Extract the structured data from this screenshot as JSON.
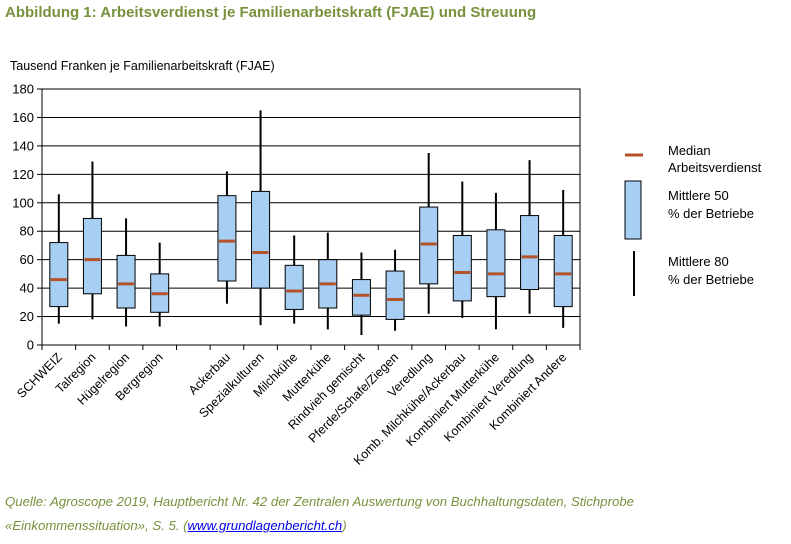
{
  "title": "Abbildung 1: Arbeitsverdienst je Familienarbeitskraft (FJAE) und Streuung",
  "source": {
    "line1": "Quelle: Agroscope 2019, Hauptbericht Nr. 42 der Zentralen Auswertung von Buchhaltungsdaten, Stichprobe",
    "line2_prefix": "«Einkommenssituation», S. 5. (",
    "link": "www.grundlagenbericht.ch",
    "line2_suffix": ")"
  },
  "colors": {
    "box_fill": "#a6cff3",
    "median": "#b4532a",
    "whisker": "#000000",
    "title": "#76923c"
  },
  "legend": [
    {
      "kind": "median",
      "label": "Median Arbeitsverdienst"
    },
    {
      "kind": "box",
      "label": "Mittlere 50 % der Betriebe"
    },
    {
      "kind": "whisker",
      "label": "Mittlere 80 % der Betriebe"
    }
  ],
  "chart_data": {
    "type": "boxplot",
    "ylabel": "Tausend Franken je Familienarbeitskraft (FJAE)",
    "ylim": [
      0,
      180
    ],
    "yticks": [
      0,
      20,
      40,
      60,
      80,
      100,
      120,
      140,
      160,
      180
    ],
    "grid": true,
    "legend_position": "right",
    "categories": [
      "SCHWEIZ",
      "Talregion",
      "Hügelregion",
      "Bergregion",
      "",
      "Ackerbau",
      "Spezialkulturen",
      "Milchkühe",
      "Mutterkühe",
      "Rindvieh gemischt",
      "Pferde/Schafe/Ziegen",
      "Veredlung",
      "Komb. Milchkühe/Ackerbau",
      "Kombiniert Mutterkühe",
      "Kombiniert Veredlung",
      "Kombiniert Andere"
    ],
    "boxes": [
      {
        "p10": 15,
        "q1": 27,
        "median": 46,
        "q3": 72,
        "p90": 106
      },
      {
        "p10": 18,
        "q1": 36,
        "median": 60,
        "q3": 89,
        "p90": 129
      },
      {
        "p10": 13,
        "q1": 26,
        "median": 43,
        "q3": 63,
        "p90": 89
      },
      {
        "p10": 13,
        "q1": 23,
        "median": 36,
        "q3": 50,
        "p90": 72
      },
      null,
      {
        "p10": 29,
        "q1": 45,
        "median": 73,
        "q3": 105,
        "p90": 122
      },
      {
        "p10": 14,
        "q1": 40,
        "median": 65,
        "q3": 108,
        "p90": 165
      },
      {
        "p10": 15,
        "q1": 25,
        "median": 38,
        "q3": 56,
        "p90": 77
      },
      {
        "p10": 11,
        "q1": 26,
        "median": 43,
        "q3": 60,
        "p90": 79
      },
      {
        "p10": 7,
        "q1": 21,
        "median": 35,
        "q3": 46,
        "p90": 65
      },
      {
        "p10": 10,
        "q1": 18,
        "median": 32,
        "q3": 52,
        "p90": 67
      },
      {
        "p10": 22,
        "q1": 43,
        "median": 71,
        "q3": 97,
        "p90": 135
      },
      {
        "p10": 19,
        "q1": 31,
        "median": 51,
        "q3": 77,
        "p90": 115
      },
      {
        "p10": 11,
        "q1": 34,
        "median": 50,
        "q3": 81,
        "p90": 107
      },
      {
        "p10": 22,
        "q1": 39,
        "median": 62,
        "q3": 91,
        "p90": 130
      },
      {
        "p10": 12,
        "q1": 27,
        "median": 50,
        "q3": 77,
        "p90": 109
      }
    ]
  }
}
